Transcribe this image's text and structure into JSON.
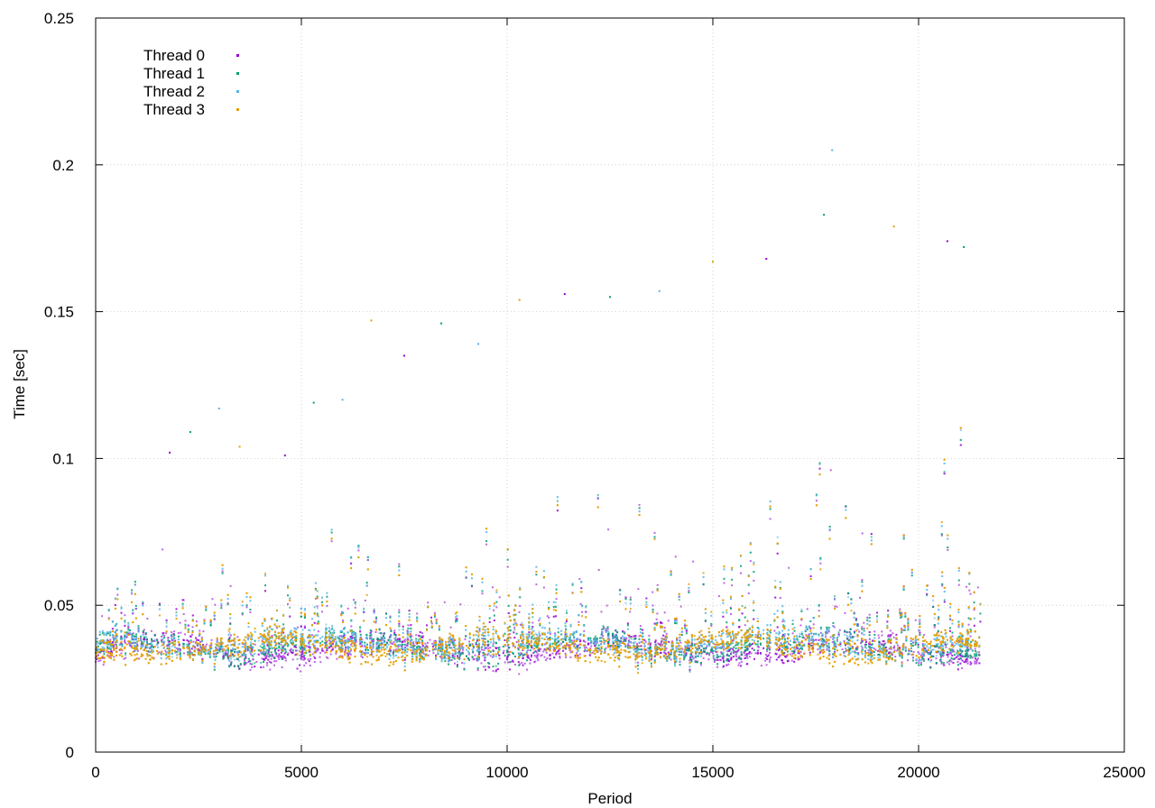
{
  "chart_data": {
    "type": "scatter",
    "title": "",
    "xlabel": "Period",
    "ylabel": "Time [sec]",
    "xlim": [
      0,
      25000
    ],
    "ylim": [
      0,
      0.25
    ],
    "x_ticks": [
      0,
      5000,
      10000,
      15000,
      20000,
      25000
    ],
    "y_ticks": [
      0,
      0.05,
      0.1,
      0.15,
      0.2,
      0.25
    ],
    "x_tick_labels": [
      "0",
      "5000",
      "10000",
      "15000",
      "20000",
      "25000"
    ],
    "y_tick_labels": [
      "0",
      "0.05",
      "0.1",
      "0.15",
      "0.2",
      "0.25"
    ],
    "grid": true,
    "legend_position": "top-left",
    "x_range_of_data": [
      0,
      21500
    ],
    "series": [
      {
        "name": "Thread 0",
        "color": "#9400d3",
        "marker": "plus",
        "baseline": 0.035,
        "sample_points": [
          [
            2000,
            0.036
          ],
          [
            5000,
            0.037
          ],
          [
            8000,
            0.037
          ],
          [
            10000,
            0.036
          ],
          [
            13000,
            0.036
          ],
          [
            16000,
            0.037
          ],
          [
            19000,
            0.038
          ],
          [
            21400,
            0.037
          ]
        ]
      },
      {
        "name": "Thread 1",
        "color": "#009e73",
        "marker": "cross",
        "baseline": 0.036,
        "sample_points": [
          [
            2000,
            0.036
          ],
          [
            5000,
            0.037
          ],
          [
            8000,
            0.038
          ],
          [
            10000,
            0.037
          ],
          [
            13000,
            0.037
          ],
          [
            16000,
            0.038
          ],
          [
            19000,
            0.038
          ],
          [
            21400,
            0.038
          ]
        ]
      },
      {
        "name": "Thread 2",
        "color": "#56b4e9",
        "marker": "star",
        "baseline": 0.037,
        "sample_points": [
          [
            2000,
            0.037
          ],
          [
            5000,
            0.038
          ],
          [
            8000,
            0.038
          ],
          [
            10000,
            0.038
          ],
          [
            13000,
            0.038
          ],
          [
            16000,
            0.039
          ],
          [
            19000,
            0.039
          ],
          [
            21400,
            0.039
          ]
        ]
      },
      {
        "name": "Thread 3",
        "color": "#e69f00",
        "marker": "box",
        "baseline": 0.036,
        "sample_points": [
          [
            2000,
            0.036
          ],
          [
            5000,
            0.037
          ],
          [
            8000,
            0.037
          ],
          [
            10000,
            0.037
          ],
          [
            13000,
            0.036
          ],
          [
            16000,
            0.037
          ],
          [
            19000,
            0.038
          ],
          [
            21400,
            0.037
          ]
        ]
      }
    ],
    "notable_outliers": [
      [
        1800,
        0.102
      ],
      [
        2300,
        0.109
      ],
      [
        3000,
        0.117
      ],
      [
        3500,
        0.104
      ],
      [
        4600,
        0.101
      ],
      [
        5300,
        0.119
      ],
      [
        6000,
        0.12
      ],
      [
        6700,
        0.147
      ],
      [
        7500,
        0.135
      ],
      [
        8400,
        0.146
      ],
      [
        9300,
        0.139
      ],
      [
        10300,
        0.154
      ],
      [
        11400,
        0.156
      ],
      [
        12500,
        0.155
      ],
      [
        13700,
        0.157
      ],
      [
        15000,
        0.167
      ],
      [
        16300,
        0.168
      ],
      [
        17700,
        0.183
      ],
      [
        17900,
        0.205
      ],
      [
        19400,
        0.179
      ],
      [
        20700,
        0.174
      ],
      [
        21100,
        0.172
      ]
    ]
  }
}
